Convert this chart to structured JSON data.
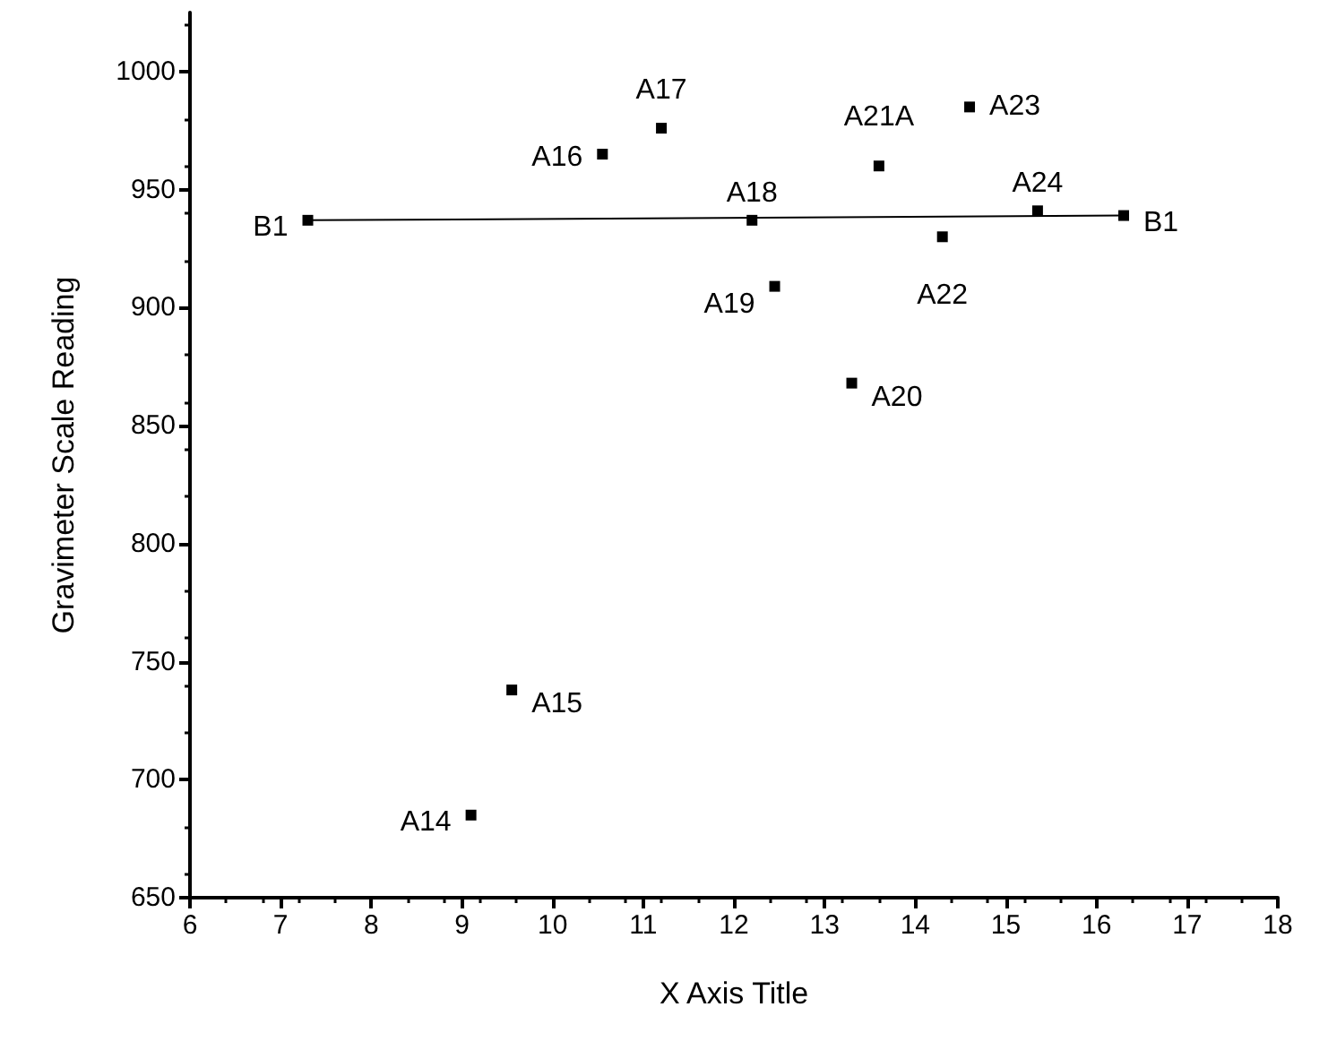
{
  "chart_data": {
    "type": "scatter",
    "xlabel": "X Axis Title",
    "ylabel": "Gravimeter Scale Reading",
    "xlim": [
      6,
      18
    ],
    "xticks": [
      6,
      7,
      8,
      9,
      10,
      11,
      12,
      13,
      14,
      15,
      16,
      17,
      18
    ],
    "ylim": [
      650,
      1025
    ],
    "yticks": [
      650,
      700,
      750,
      800,
      850,
      900,
      950,
      1000
    ],
    "grid": false,
    "marker": "square",
    "series": [
      {
        "color": "#000000",
        "x": [
          9.1,
          9.55,
          10.55,
          11.2,
          12.2,
          12.45,
          13.3,
          13.6,
          14.3,
          14.6,
          15.35
        ],
        "values": [
          685,
          738,
          965,
          976,
          937,
          909,
          868,
          960,
          930,
          985,
          941
        ],
        "value_labels": [
          "A14",
          "A15",
          "A16",
          "A17",
          "A18",
          "A19",
          "A20",
          "A21A",
          "A22",
          "A23",
          "A24"
        ]
      },
      {
        "type": "line",
        "color": "#000000",
        "line_style": "solid",
        "x": [
          7.3,
          16.3
        ],
        "values": [
          937,
          939
        ],
        "value_labels": [
          "B1",
          "B1"
        ]
      }
    ]
  }
}
